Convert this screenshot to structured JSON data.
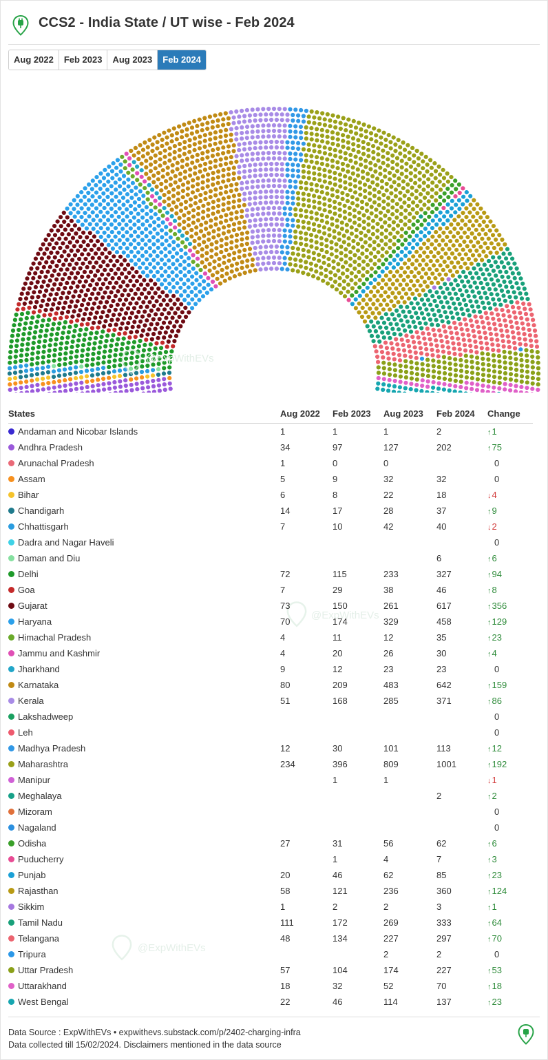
{
  "title": "CCS2 - India State / UT wise - Feb 2024",
  "tabs": [
    {
      "label": "Aug 2022",
      "active": false
    },
    {
      "label": "Feb 2023",
      "active": false
    },
    {
      "label": "Aug 2023",
      "active": false
    },
    {
      "label": "Feb 2024",
      "active": true
    }
  ],
  "icons": {
    "logo": "ev-charger-pin-icon"
  },
  "watermark": "@ExpWithEVs",
  "table": {
    "headers": {
      "state": "States",
      "aug2022": "Aug 2022",
      "feb2023": "Feb 2023",
      "aug2023": "Aug 2023",
      "feb2024": "Feb 2024",
      "change": "Change"
    }
  },
  "chart_data": {
    "type": "parliament",
    "selected_period": "Feb 2024",
    "rows": [
      {
        "state": "Andaman and Nicobar Islands",
        "color": "#3a2ad1",
        "aug2022": "1",
        "feb2023": "1",
        "aug2023": "1",
        "feb2024": "2",
        "change": "1",
        "dir": "up"
      },
      {
        "state": "Andhra Pradesh",
        "color": "#9a59db",
        "aug2022": "34",
        "feb2023": "97",
        "aug2023": "127",
        "feb2024": "202",
        "change": "75",
        "dir": "up"
      },
      {
        "state": "Arunachal Pradesh",
        "color": "#ea6a78",
        "aug2022": "1",
        "feb2023": "0",
        "aug2023": "0",
        "feb2024": "",
        "change": "0",
        "dir": "none"
      },
      {
        "state": "Assam",
        "color": "#f7901e",
        "aug2022": "5",
        "feb2023": "9",
        "aug2023": "32",
        "feb2024": "32",
        "change": "0",
        "dir": "none"
      },
      {
        "state": "Bihar",
        "color": "#f5c32c",
        "aug2022": "6",
        "feb2023": "8",
        "aug2023": "22",
        "feb2024": "18",
        "change": "4",
        "dir": "down"
      },
      {
        "state": "Chandigarh",
        "color": "#1f7a8c",
        "aug2022": "14",
        "feb2023": "17",
        "aug2023": "28",
        "feb2024": "37",
        "change": "9",
        "dir": "up"
      },
      {
        "state": "Chhattisgarh",
        "color": "#2b9de0",
        "aug2022": "7",
        "feb2023": "10",
        "aug2023": "42",
        "feb2024": "40",
        "change": "2",
        "dir": "down"
      },
      {
        "state": "Dadra and Nagar Haveli",
        "color": "#3fd2e6",
        "aug2022": "",
        "feb2023": "",
        "aug2023": "",
        "feb2024": "",
        "change": "0",
        "dir": "none"
      },
      {
        "state": "Daman and Diu",
        "color": "#86e0a0",
        "aug2022": "",
        "feb2023": "",
        "aug2023": "",
        "feb2024": "6",
        "change": "6",
        "dir": "up"
      },
      {
        "state": "Delhi",
        "color": "#1e9a2a",
        "aug2022": "72",
        "feb2023": "115",
        "aug2023": "233",
        "feb2024": "327",
        "change": "94",
        "dir": "up"
      },
      {
        "state": "Goa",
        "color": "#c42a2a",
        "aug2022": "7",
        "feb2023": "29",
        "aug2023": "38",
        "feb2024": "46",
        "change": "8",
        "dir": "up"
      },
      {
        "state": "Gujarat",
        "color": "#6e0a12",
        "aug2022": "73",
        "feb2023": "150",
        "aug2023": "261",
        "feb2024": "617",
        "change": "356",
        "dir": "up"
      },
      {
        "state": "Haryana",
        "color": "#2ba0ea",
        "aug2022": "70",
        "feb2023": "174",
        "aug2023": "329",
        "feb2024": "458",
        "change": "129",
        "dir": "up"
      },
      {
        "state": "Himachal Pradesh",
        "color": "#6aaa2a",
        "aug2022": "4",
        "feb2023": "11",
        "aug2023": "12",
        "feb2024": "35",
        "change": "23",
        "dir": "up"
      },
      {
        "state": "Jammu and Kashmir",
        "color": "#e04fb5",
        "aug2022": "4",
        "feb2023": "20",
        "aug2023": "26",
        "feb2024": "30",
        "change": "4",
        "dir": "up"
      },
      {
        "state": "Jharkhand",
        "color": "#22a6c8",
        "aug2022": "9",
        "feb2023": "12",
        "aug2023": "23",
        "feb2024": "23",
        "change": "0",
        "dir": "none"
      },
      {
        "state": "Karnataka",
        "color": "#c08a14",
        "aug2022": "80",
        "feb2023": "209",
        "aug2023": "483",
        "feb2024": "642",
        "change": "159",
        "dir": "up"
      },
      {
        "state": "Kerala",
        "color": "#a88be6",
        "aug2022": "51",
        "feb2023": "168",
        "aug2023": "285",
        "feb2024": "371",
        "change": "86",
        "dir": "up"
      },
      {
        "state": "Lakshadweep",
        "color": "#1aa060",
        "aug2022": "",
        "feb2023": "",
        "aug2023": "",
        "feb2024": "",
        "change": "0",
        "dir": "none"
      },
      {
        "state": "Leh",
        "color": "#ee5a6e",
        "aug2022": "",
        "feb2023": "",
        "aug2023": "",
        "feb2024": "",
        "change": "0",
        "dir": "none"
      },
      {
        "state": "Madhya Pradesh",
        "color": "#3198e6",
        "aug2022": "12",
        "feb2023": "30",
        "aug2023": "101",
        "feb2024": "113",
        "change": "12",
        "dir": "up"
      },
      {
        "state": "Maharashtra",
        "color": "#9aa018",
        "aug2022": "234",
        "feb2023": "396",
        "aug2023": "809",
        "feb2024": "1001",
        "change": "192",
        "dir": "up"
      },
      {
        "state": "Manipur",
        "color": "#d060d6",
        "aug2022": "",
        "feb2023": "1",
        "aug2023": "1",
        "feb2024": "",
        "change": "1",
        "dir": "down"
      },
      {
        "state": "Meghalaya",
        "color": "#16a088",
        "aug2022": "",
        "feb2023": "",
        "aug2023": "",
        "feb2024": "2",
        "change": "2",
        "dir": "up"
      },
      {
        "state": "Mizoram",
        "color": "#e0703a",
        "aug2022": "",
        "feb2023": "",
        "aug2023": "",
        "feb2024": "",
        "change": "0",
        "dir": "none"
      },
      {
        "state": "Nagaland",
        "color": "#2b90e0",
        "aug2022": "",
        "feb2023": "",
        "aug2023": "",
        "feb2024": "",
        "change": "0",
        "dir": "none"
      },
      {
        "state": "Odisha",
        "color": "#3aa02a",
        "aug2022": "27",
        "feb2023": "31",
        "aug2023": "56",
        "feb2024": "62",
        "change": "6",
        "dir": "up"
      },
      {
        "state": "Puducherry",
        "color": "#e84c94",
        "aug2022": "",
        "feb2023": "1",
        "aug2023": "4",
        "feb2024": "7",
        "change": "3",
        "dir": "up"
      },
      {
        "state": "Punjab",
        "color": "#1aa0d6",
        "aug2022": "20",
        "feb2023": "46",
        "aug2023": "62",
        "feb2024": "85",
        "change": "23",
        "dir": "up"
      },
      {
        "state": "Rajasthan",
        "color": "#b89a14",
        "aug2022": "58",
        "feb2023": "121",
        "aug2023": "236",
        "feb2024": "360",
        "change": "124",
        "dir": "up"
      },
      {
        "state": "Sikkim",
        "color": "#a678e0",
        "aug2022": "1",
        "feb2023": "2",
        "aug2023": "2",
        "feb2024": "3",
        "change": "1",
        "dir": "up"
      },
      {
        "state": "Tamil Nadu",
        "color": "#18a07a",
        "aug2022": "111",
        "feb2023": "172",
        "aug2023": "269",
        "feb2024": "333",
        "change": "64",
        "dir": "up"
      },
      {
        "state": "Telangana",
        "color": "#ec6470",
        "aug2022": "48",
        "feb2023": "134",
        "aug2023": "227",
        "feb2024": "297",
        "change": "70",
        "dir": "up"
      },
      {
        "state": "Tripura",
        "color": "#2b98e8",
        "aug2022": "",
        "feb2023": "",
        "aug2023": "2",
        "feb2024": "2",
        "change": "0",
        "dir": "none"
      },
      {
        "state": "Uttar Pradesh",
        "color": "#8aa018",
        "aug2022": "57",
        "feb2023": "104",
        "aug2023": "174",
        "feb2024": "227",
        "change": "53",
        "dir": "up"
      },
      {
        "state": "Uttarakhand",
        "color": "#e060c8",
        "aug2022": "18",
        "feb2023": "32",
        "aug2023": "52",
        "feb2024": "70",
        "change": "18",
        "dir": "up"
      },
      {
        "state": "West Bengal",
        "color": "#16a6b0",
        "aug2022": "22",
        "feb2023": "46",
        "aug2023": "114",
        "feb2024": "137",
        "change": "23",
        "dir": "up"
      }
    ]
  },
  "footer": {
    "line1": "Data Source : ExpWithEVs • expwithevs.substack.com/p/2402-charging-infra",
    "line2": "Data collected till 15/02/2024. Disclaimers mentioned in the data source"
  }
}
